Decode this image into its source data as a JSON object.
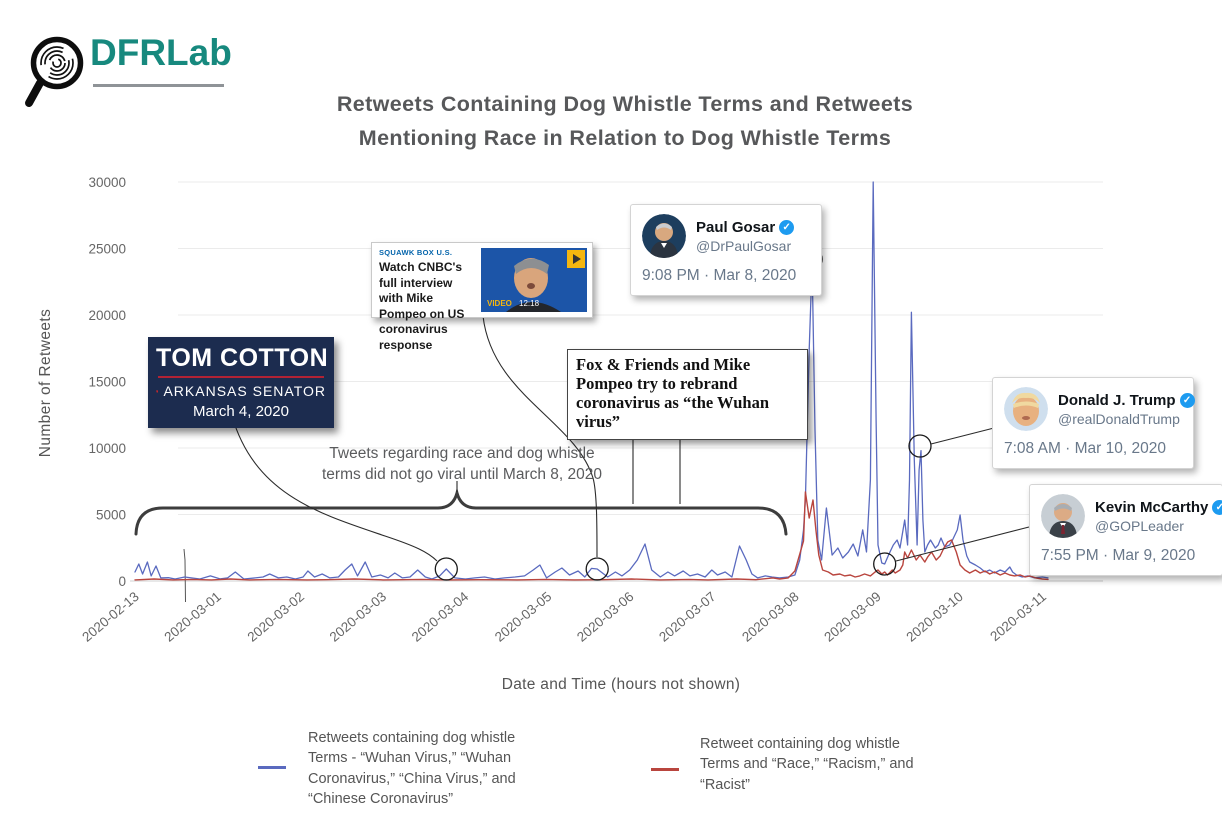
{
  "logo": {
    "text": "DFRLab",
    "brand_color": "#17897E"
  },
  "title": {
    "line1": "Retweets Containing Dog Whistle Terms and Retweets",
    "line2": "Mentioning Race in Relation to Dog Whistle Terms"
  },
  "chart_data": {
    "type": "line",
    "title": "Retweets Containing Dog Whistle Terms and Retweets Mentioning Race in Relation to Dog Whistle Terms",
    "xlabel": "Date and Time (hours not shown)",
    "ylabel": "Number of Retweets",
    "ylim": [
      0,
      30000
    ],
    "grid": "horizontal only",
    "legend_position": "bottom",
    "y_ticks": [
      0,
      5000,
      10000,
      15000,
      20000,
      25000,
      30000
    ],
    "x_ticks": [
      {
        "label": "2020-02-13",
        "pos": 0.002
      },
      {
        "label": "2020-03-01",
        "pos": 0.088
      },
      {
        "label": "2020-03-02",
        "pos": 0.175
      },
      {
        "label": "2020-03-03",
        "pos": 0.261
      },
      {
        "label": "2020-03-04",
        "pos": 0.347
      },
      {
        "label": "2020-03-05",
        "pos": 0.434
      },
      {
        "label": "2020-03-06",
        "pos": 0.52
      },
      {
        "label": "2020-03-07",
        "pos": 0.606
      },
      {
        "label": "2020-03-08",
        "pos": 0.693
      },
      {
        "label": "2020-03-09",
        "pos": 0.779
      },
      {
        "label": "2020-03-10",
        "pos": 0.865
      },
      {
        "label": "2020-03-11",
        "pos": 0.952
      }
    ],
    "series": [
      {
        "name": "Retweets containing dog whistle terms",
        "color": "#5A6ABF",
        "width": 1.3,
        "points": [
          [
            0.0,
            680
          ],
          [
            0.004,
            1280
          ],
          [
            0.008,
            530
          ],
          [
            0.013,
            1430
          ],
          [
            0.017,
            380
          ],
          [
            0.022,
            1130
          ],
          [
            0.027,
            230
          ],
          [
            0.035,
            250
          ],
          [
            0.042,
            150
          ],
          [
            0.052,
            300
          ],
          [
            0.068,
            150
          ],
          [
            0.079,
            380
          ],
          [
            0.089,
            160
          ],
          [
            0.097,
            230
          ],
          [
            0.105,
            680
          ],
          [
            0.114,
            150
          ],
          [
            0.126,
            230
          ],
          [
            0.134,
            300
          ],
          [
            0.141,
            530
          ],
          [
            0.15,
            230
          ],
          [
            0.159,
            300
          ],
          [
            0.168,
            150
          ],
          [
            0.176,
            300
          ],
          [
            0.181,
            750
          ],
          [
            0.188,
            300
          ],
          [
            0.196,
            530
          ],
          [
            0.204,
            230
          ],
          [
            0.213,
            300
          ],
          [
            0.22,
            830
          ],
          [
            0.227,
            1280
          ],
          [
            0.233,
            380
          ],
          [
            0.241,
            1430
          ],
          [
            0.248,
            300
          ],
          [
            0.257,
            450
          ],
          [
            0.265,
            230
          ],
          [
            0.272,
            600
          ],
          [
            0.28,
            230
          ],
          [
            0.288,
            300
          ],
          [
            0.296,
            830
          ],
          [
            0.304,
            300
          ],
          [
            0.311,
            150
          ],
          [
            0.319,
            380
          ],
          [
            0.326,
            900
          ],
          [
            0.335,
            230
          ],
          [
            0.346,
            150
          ],
          [
            0.356,
            230
          ],
          [
            0.366,
            300
          ],
          [
            0.377,
            150
          ],
          [
            0.387,
            230
          ],
          [
            0.398,
            300
          ],
          [
            0.408,
            380
          ],
          [
            0.417,
            830
          ],
          [
            0.424,
            1200
          ],
          [
            0.431,
            230
          ],
          [
            0.44,
            680
          ],
          [
            0.447,
            980
          ],
          [
            0.455,
            450
          ],
          [
            0.464,
            750
          ],
          [
            0.471,
            300
          ],
          [
            0.478,
            950
          ],
          [
            0.484,
            900
          ],
          [
            0.495,
            300
          ],
          [
            0.503,
            680
          ],
          [
            0.51,
            380
          ],
          [
            0.518,
            830
          ],
          [
            0.526,
            1580
          ],
          [
            0.534,
            2780
          ],
          [
            0.541,
            830
          ],
          [
            0.55,
            300
          ],
          [
            0.558,
            680
          ],
          [
            0.565,
            380
          ],
          [
            0.574,
            750
          ],
          [
            0.581,
            380
          ],
          [
            0.589,
            530
          ],
          [
            0.597,
            300
          ],
          [
            0.604,
            830
          ],
          [
            0.61,
            450
          ],
          [
            0.618,
            680
          ],
          [
            0.625,
            300
          ],
          [
            0.633,
            2630
          ],
          [
            0.64,
            1580
          ],
          [
            0.646,
            530
          ],
          [
            0.652,
            230
          ],
          [
            0.66,
            380
          ],
          [
            0.667,
            300
          ],
          [
            0.675,
            230
          ],
          [
            0.684,
            300
          ],
          [
            0.691,
            450
          ],
          [
            0.696,
            1580
          ],
          [
            0.7,
            3840
          ],
          [
            0.702,
            6100
          ],
          [
            0.706,
            17400
          ],
          [
            0.709,
            23900
          ],
          [
            0.712,
            11350
          ],
          [
            0.715,
            3080
          ],
          [
            0.719,
            1580
          ],
          [
            0.724,
            5490
          ],
          [
            0.73,
            1950
          ],
          [
            0.736,
            2480
          ],
          [
            0.741,
            1730
          ],
          [
            0.747,
            2180
          ],
          [
            0.752,
            2780
          ],
          [
            0.757,
            1880
          ],
          [
            0.762,
            3840
          ],
          [
            0.766,
            2180
          ],
          [
            0.77,
            7600
          ],
          [
            0.773,
            30000
          ],
          [
            0.776,
            12100
          ],
          [
            0.778,
            2710
          ],
          [
            0.782,
            1350
          ],
          [
            0.785,
            1280
          ],
          [
            0.789,
            1950
          ],
          [
            0.794,
            2710
          ],
          [
            0.798,
            3080
          ],
          [
            0.801,
            2480
          ],
          [
            0.806,
            4590
          ],
          [
            0.809,
            2710
          ],
          [
            0.811,
            7600
          ],
          [
            0.813,
            20200
          ],
          [
            0.816,
            9100
          ],
          [
            0.819,
            2710
          ],
          [
            0.821,
            8350
          ],
          [
            0.823,
            9800
          ],
          [
            0.825,
            4590
          ],
          [
            0.827,
            2180
          ],
          [
            0.83,
            2710
          ],
          [
            0.833,
            3080
          ],
          [
            0.838,
            2480
          ],
          [
            0.841,
            2710
          ],
          [
            0.844,
            3230
          ],
          [
            0.848,
            2560
          ],
          [
            0.853,
            2710
          ],
          [
            0.856,
            3080
          ],
          [
            0.861,
            3840
          ],
          [
            0.864,
            4960
          ],
          [
            0.867,
            3080
          ],
          [
            0.871,
            1880
          ],
          [
            0.874,
            1430
          ],
          [
            0.88,
            1200
          ],
          [
            0.885,
            980
          ],
          [
            0.89,
            680
          ],
          [
            0.895,
            830
          ],
          [
            0.9,
            600
          ],
          [
            0.906,
            830
          ],
          [
            0.911,
            680
          ],
          [
            0.916,
            1050
          ],
          [
            0.919,
            680
          ],
          [
            0.923,
            450
          ],
          [
            0.929,
            300
          ],
          [
            0.935,
            380
          ],
          [
            0.942,
            230
          ],
          [
            0.95,
            300
          ],
          [
            0.956,
            230
          ]
        ]
      },
      {
        "name": "Retweets containing dog whistle terms and race terms",
        "color": "#B9453E",
        "width": 1.4,
        "points": [
          [
            0.0,
            80
          ],
          [
            0.02,
            150
          ],
          [
            0.04,
            80
          ],
          [
            0.06,
            120
          ],
          [
            0.08,
            80
          ],
          [
            0.1,
            150
          ],
          [
            0.12,
            80
          ],
          [
            0.15,
            120
          ],
          [
            0.18,
            80
          ],
          [
            0.2,
            100
          ],
          [
            0.23,
            150
          ],
          [
            0.26,
            80
          ],
          [
            0.3,
            120
          ],
          [
            0.33,
            80
          ],
          [
            0.36,
            100
          ],
          [
            0.4,
            80
          ],
          [
            0.43,
            120
          ],
          [
            0.46,
            80
          ],
          [
            0.49,
            100
          ],
          [
            0.52,
            150
          ],
          [
            0.55,
            80
          ],
          [
            0.58,
            120
          ],
          [
            0.6,
            80
          ],
          [
            0.63,
            150
          ],
          [
            0.65,
            100
          ],
          [
            0.668,
            230
          ],
          [
            0.675,
            150
          ],
          [
            0.684,
            230
          ],
          [
            0.691,
            750
          ],
          [
            0.7,
            3000
          ],
          [
            0.702,
            6690
          ],
          [
            0.706,
            4740
          ],
          [
            0.71,
            6090
          ],
          [
            0.713,
            3840
          ],
          [
            0.716,
            1950
          ],
          [
            0.72,
            830
          ],
          [
            0.726,
            680
          ],
          [
            0.731,
            450
          ],
          [
            0.738,
            530
          ],
          [
            0.743,
            380
          ],
          [
            0.749,
            450
          ],
          [
            0.754,
            300
          ],
          [
            0.759,
            380
          ],
          [
            0.764,
            530
          ],
          [
            0.77,
            380
          ],
          [
            0.775,
            680
          ],
          [
            0.778,
            830
          ],
          [
            0.782,
            530
          ],
          [
            0.785,
            680
          ],
          [
            0.788,
            450
          ],
          [
            0.793,
            830
          ],
          [
            0.796,
            600
          ],
          [
            0.801,
            830
          ],
          [
            0.804,
            1200
          ],
          [
            0.806,
            2180
          ],
          [
            0.809,
            1730
          ],
          [
            0.813,
            2330
          ],
          [
            0.818,
            1580
          ],
          [
            0.822,
            1950
          ],
          [
            0.827,
            1430
          ],
          [
            0.83,
            1800
          ],
          [
            0.834,
            2180
          ],
          [
            0.839,
            1580
          ],
          [
            0.843,
            1880
          ],
          [
            0.847,
            2480
          ],
          [
            0.851,
            2930
          ],
          [
            0.855,
            3080
          ],
          [
            0.86,
            2180
          ],
          [
            0.864,
            1200
          ],
          [
            0.869,
            830
          ],
          [
            0.874,
            600
          ],
          [
            0.88,
            830
          ],
          [
            0.885,
            600
          ],
          [
            0.89,
            750
          ],
          [
            0.895,
            530
          ],
          [
            0.9,
            680
          ],
          [
            0.906,
            450
          ],
          [
            0.911,
            600
          ],
          [
            0.916,
            450
          ],
          [
            0.921,
            380
          ],
          [
            0.927,
            450
          ],
          [
            0.932,
            300
          ],
          [
            0.937,
            380
          ],
          [
            0.943,
            230
          ],
          [
            0.95,
            150
          ],
          [
            0.956,
            120
          ]
        ]
      }
    ],
    "markers": [
      {
        "id": "tom-cotton-point",
        "x": 0.326,
        "y": 900
      },
      {
        "id": "cnbc-fox-point",
        "x": 0.484,
        "y": 900
      },
      {
        "id": "gosar-point",
        "x": 0.708,
        "y": 24200
      },
      {
        "id": "mccarthy-point",
        "x": 0.785,
        "y": 1280
      },
      {
        "id": "trump-point",
        "x": 0.822,
        "y": 10150
      }
    ]
  },
  "annotations": {
    "race_note": "Tweets regarding race and dog whistle\nterms did not go viral until March 8, 2020",
    "tom_cotton": {
      "name": "TOM COTTON",
      "subtitle": "ARKANSAS SENATOR",
      "date": "March 4, 2020"
    },
    "cnbc": {
      "eyebrow": "SQUAWK BOX U.S.",
      "headline": "Watch CNBC's full interview with Mike Pompeo on US coronavirus response",
      "video_label": "VIDEO",
      "video_time": "12:18"
    },
    "fox": "Fox & Friends and Mike Pompeo try to rebrand coronavirus as “the Wuhan virus”",
    "tweets": [
      {
        "name": "Paul Gosar",
        "handle": "@DrPaulGosar",
        "time": "9:08 PM · Mar 8, 2020",
        "verified_icon": "check",
        "badge_color": "#1d9bf0"
      },
      {
        "name": "Donald J. Trump",
        "handle": "@realDonaldTrump",
        "time": "7:08 AM · Mar 10, 2020",
        "verified_icon": "check",
        "badge_color": "#1d9bf0"
      },
      {
        "name": "Kevin McCarthy",
        "handle": "@GOPLeader",
        "time": "7:55 PM · Mar 9, 2020",
        "verified_icon": "check",
        "badge_color": "#1d9bf0"
      }
    ]
  },
  "legend": {
    "items": [
      {
        "color": "#5A6ABF",
        "label": "Retweets containing dog whistle\nTerms - “Wuhan Virus,” “Wuhan\nCoronavirus,” “China Virus,” and\n“Chinese Coronavirus”"
      },
      {
        "color": "#B9453E",
        "label": "Retweet containing dog whistle\nTerms and “Race,” “Racism,” and\n“Racist”"
      }
    ]
  }
}
